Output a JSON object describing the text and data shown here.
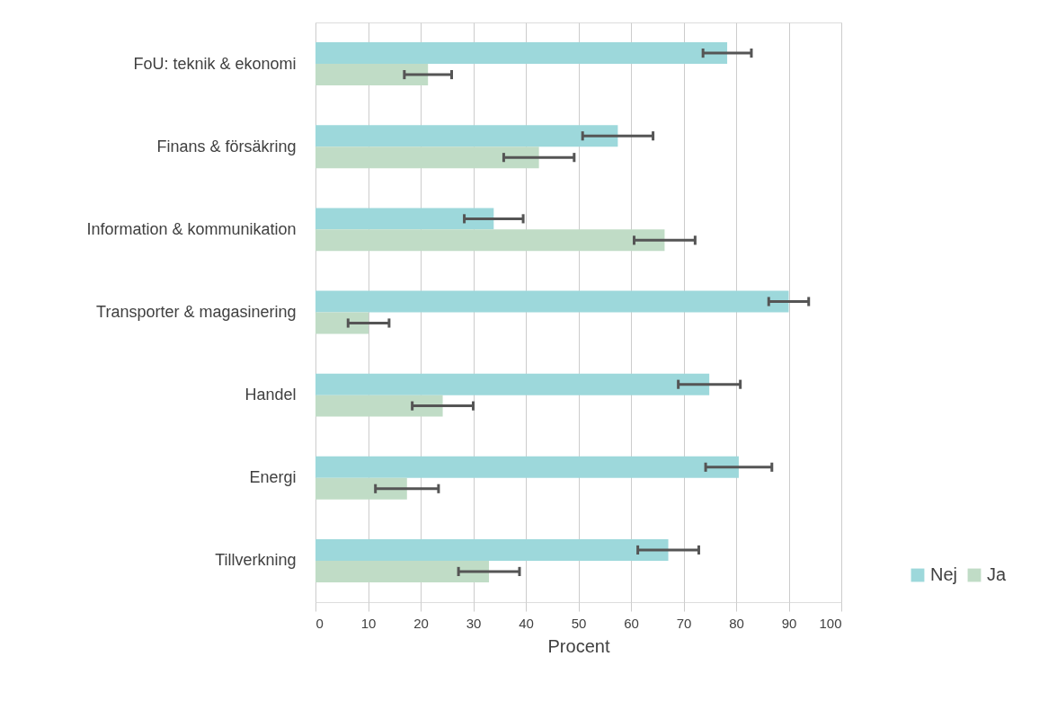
{
  "chart_data": {
    "type": "bar",
    "orientation": "horizontal",
    "xlabel": "Procent",
    "categories": [
      "FoU: teknik & ekonomi",
      "Finans & försäkring",
      "Information & kommunikation",
      "Transporter & magasinering",
      "Handel",
      "Energi",
      "Tillverkning"
    ],
    "series": [
      {
        "name": "Nej",
        "color": "#9dd8db",
        "values": [
          78.3,
          57.5,
          33.9,
          90,
          74.9,
          80.5,
          67.1
        ],
        "errors": [
          4.6,
          6.7,
          5.6,
          3.8,
          5.9,
          6.3,
          5.8
        ]
      },
      {
        "name": "Ja",
        "color": "#c0dcc6",
        "values": [
          21.4,
          42.5,
          66.4,
          10.1,
          24.2,
          17.4,
          33.0
        ],
        "errors": [
          4.5,
          6.7,
          5.8,
          3.9,
          5.8,
          6.0,
          5.8
        ]
      }
    ],
    "xlim": [
      0,
      100
    ],
    "xticks": [
      0,
      10,
      20,
      30,
      40,
      50,
      60,
      70,
      80,
      90,
      100
    ],
    "grid": "x",
    "legend": "bottom right"
  }
}
